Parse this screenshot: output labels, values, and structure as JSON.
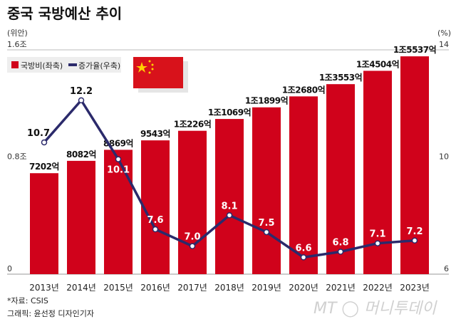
{
  "title": "중국 국방예산 추이",
  "left_unit": "(위안)",
  "right_unit": "(%)",
  "source": "*자료: CSIS",
  "credit": "그래픽: 윤선정 디자인기자",
  "watermark": "MT 머니투데이",
  "colors": {
    "bar": "#d0021b",
    "line": "#2b2a6b"
  },
  "flag_icon": "china-flag",
  "chart_data": {
    "type": "bar+line",
    "title": "중국 국방예산 추이",
    "categories": [
      "2013년",
      "2014년",
      "2015년",
      "2016년",
      "2017년",
      "2018년",
      "2019년",
      "2020년",
      "2021년",
      "2022년",
      "2023년"
    ],
    "left_axis": {
      "unit": "(위안)",
      "range": [
        0,
        1.6
      ],
      "ticks": [
        0,
        0.8,
        1.6
      ],
      "tick_labels": [
        "0",
        "0.8조",
        "1.6조"
      ]
    },
    "right_axis": {
      "unit": "(%)",
      "range": [
        6,
        14
      ],
      "ticks": [
        6,
        10,
        14
      ],
      "tick_labels": [
        "6",
        "10",
        "14"
      ]
    },
    "legend": {
      "placement": "top-left",
      "entries": [
        "국방비(좌축)",
        "증가율(우축)"
      ]
    },
    "series": [
      {
        "name": "국방비(좌축)",
        "type": "bar",
        "axis": "left",
        "values": [
          0.7202,
          0.8082,
          0.8869,
          0.9543,
          1.0226,
          1.1069,
          1.1899,
          1.268,
          1.3553,
          1.4504,
          1.5537
        ],
        "labels": [
          "7202억",
          "8082억",
          "8869억",
          "9543억",
          "1조226억",
          "1조1069억",
          "1조1899억",
          "1조2680억",
          "1조3553억",
          "1조4504억",
          "1조5537억"
        ]
      },
      {
        "name": "증가율(우축)",
        "type": "line",
        "axis": "right",
        "values": [
          10.7,
          12.2,
          10.1,
          7.6,
          7.0,
          8.1,
          7.5,
          6.6,
          6.8,
          7.1,
          7.2
        ],
        "labels": [
          "10.7",
          "12.2",
          "10.1",
          "7.6",
          "7.0",
          "8.1",
          "7.5",
          "6.6",
          "6.8",
          "7.1",
          "7.2"
        ]
      }
    ]
  }
}
